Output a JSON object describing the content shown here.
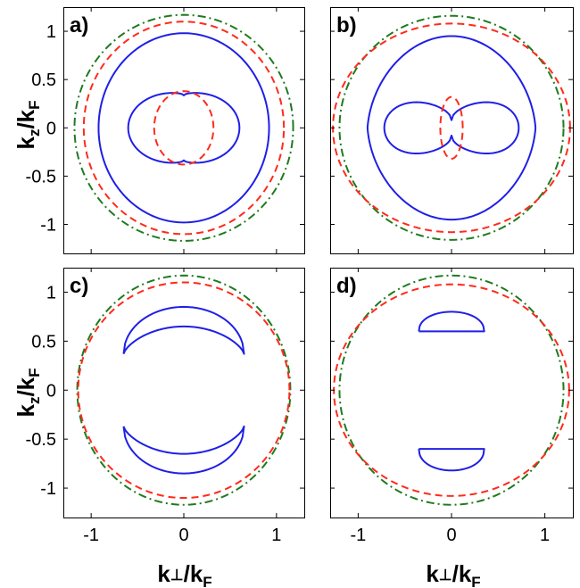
{
  "chart_data": [
    {
      "type": "line",
      "panel_label": "a)",
      "xlim": [
        -1.3,
        1.3
      ],
      "ylim": [
        -1.3,
        1.25
      ],
      "yticks": [
        "1",
        "0.5",
        "0",
        "-0.5",
        "-1"
      ],
      "yticks_values": [
        1,
        0.5,
        0,
        -0.5,
        -1
      ],
      "xticks": [],
      "xticks_values": [],
      "curves": [
        {
          "style": "green-dashdot",
          "color": "#1f7a1f",
          "shape": "ellipse",
          "a": 1.18,
          "b": 1.17
        },
        {
          "style": "red-dashed",
          "color": "#ff2a1a",
          "shape": "ellipse",
          "a": 1.08,
          "b": 1.1
        },
        {
          "style": "blue-solid",
          "color": "#1f1fe6",
          "shape": "ellipse",
          "a": 0.92,
          "b": 0.98
        },
        {
          "style": "blue-solid",
          "color": "#1f1fe6",
          "shape": "peanut",
          "halfwidth": 0.6,
          "height": 0.41
        },
        {
          "style": "red-dashed",
          "color": "#ff2a1a",
          "shape": "ellipse",
          "a": 0.32,
          "b": 0.38
        }
      ]
    },
    {
      "type": "line",
      "panel_label": "b)",
      "xlim": [
        -1.3,
        1.3
      ],
      "ylim": [
        -1.3,
        1.25
      ],
      "yticks": [],
      "yticks_values": [],
      "xticks": [],
      "xticks_values": [],
      "curves": [
        {
          "style": "green-dashdot",
          "color": "#1f7a1f",
          "shape": "ellipse",
          "a": 1.2,
          "b": 1.16
        },
        {
          "style": "red-dashed",
          "color": "#ff2a1a",
          "shape": "ellipse",
          "a": 1.27,
          "b": 1.08
        },
        {
          "style": "blue-solid",
          "color": "#1f1fe6",
          "shape": "lemon",
          "a": 0.9,
          "b": 0.95
        },
        {
          "style": "blue-solid",
          "color": "#1f1fe6",
          "shape": "peanut-pinched",
          "halfwidth": 0.72,
          "height": 0.4
        },
        {
          "style": "red-dashed",
          "color": "#ff2a1a",
          "shape": "ellipse",
          "a": 0.12,
          "b": 0.32
        }
      ]
    },
    {
      "type": "line",
      "panel_label": "c)",
      "xlim": [
        -1.3,
        1.3
      ],
      "ylim": [
        -1.3,
        1.25
      ],
      "yticks": [
        "1",
        "0.5",
        "0",
        "-0.5",
        "-1"
      ],
      "yticks_values": [
        1,
        0.5,
        0,
        -0.5,
        -1
      ],
      "xticks": [
        "-1",
        "0",
        "1"
      ],
      "xticks_values": [
        -1,
        0,
        1
      ],
      "curves": [
        {
          "style": "green-dashdot",
          "color": "#1f7a1f",
          "shape": "ellipse",
          "a": 1.15,
          "b": 1.17
        },
        {
          "style": "red-dashed",
          "color": "#ff2a1a",
          "shape": "ellipse",
          "a": 1.14,
          "b": 1.1
        },
        {
          "style": "blue-solid",
          "color": "#1f1fe6",
          "shape": "crescent-top",
          "outer_top": 0.85,
          "inner_top": 0.65,
          "tip_x": 0.65,
          "tip_y": 0.37
        },
        {
          "style": "blue-solid",
          "color": "#1f1fe6",
          "shape": "crescent-bottom",
          "outer_bottom": -0.85,
          "inner_bottom": -0.65,
          "tip_x": 0.65,
          "tip_y": -0.37
        }
      ]
    },
    {
      "type": "line",
      "panel_label": "d)",
      "xlim": [
        -1.3,
        1.3
      ],
      "ylim": [
        -1.3,
        1.25
      ],
      "yticks": [],
      "yticks_values": [],
      "xticks": [
        "-1",
        "0",
        "1"
      ],
      "xticks_values": [
        -1,
        0,
        1
      ],
      "curves": [
        {
          "style": "green-dashdot",
          "color": "#1f7a1f",
          "shape": "ellipse",
          "a": 1.2,
          "b": 1.17
        },
        {
          "style": "red-dashed",
          "color": "#ff2a1a",
          "shape": "ellipse",
          "a": 1.26,
          "b": 1.08
        },
        {
          "style": "blue-solid",
          "color": "#1f1fe6",
          "shape": "dome-top",
          "halfwidth": 0.35,
          "base": 0.6,
          "top": 0.8
        },
        {
          "style": "blue-solid",
          "color": "#1f1fe6",
          "shape": "dome-bottom",
          "halfwidth": 0.35,
          "base": -0.6,
          "top": -0.82
        }
      ]
    }
  ],
  "axes": {
    "ylabel_main": "k",
    "ylabel_sub1": "z",
    "ylabel_mid": "/k",
    "ylabel_sub2": "F",
    "xlabel_main": "k",
    "xlabel_sub1": "⊥",
    "xlabel_mid": "/k",
    "xlabel_sub2": "F"
  }
}
